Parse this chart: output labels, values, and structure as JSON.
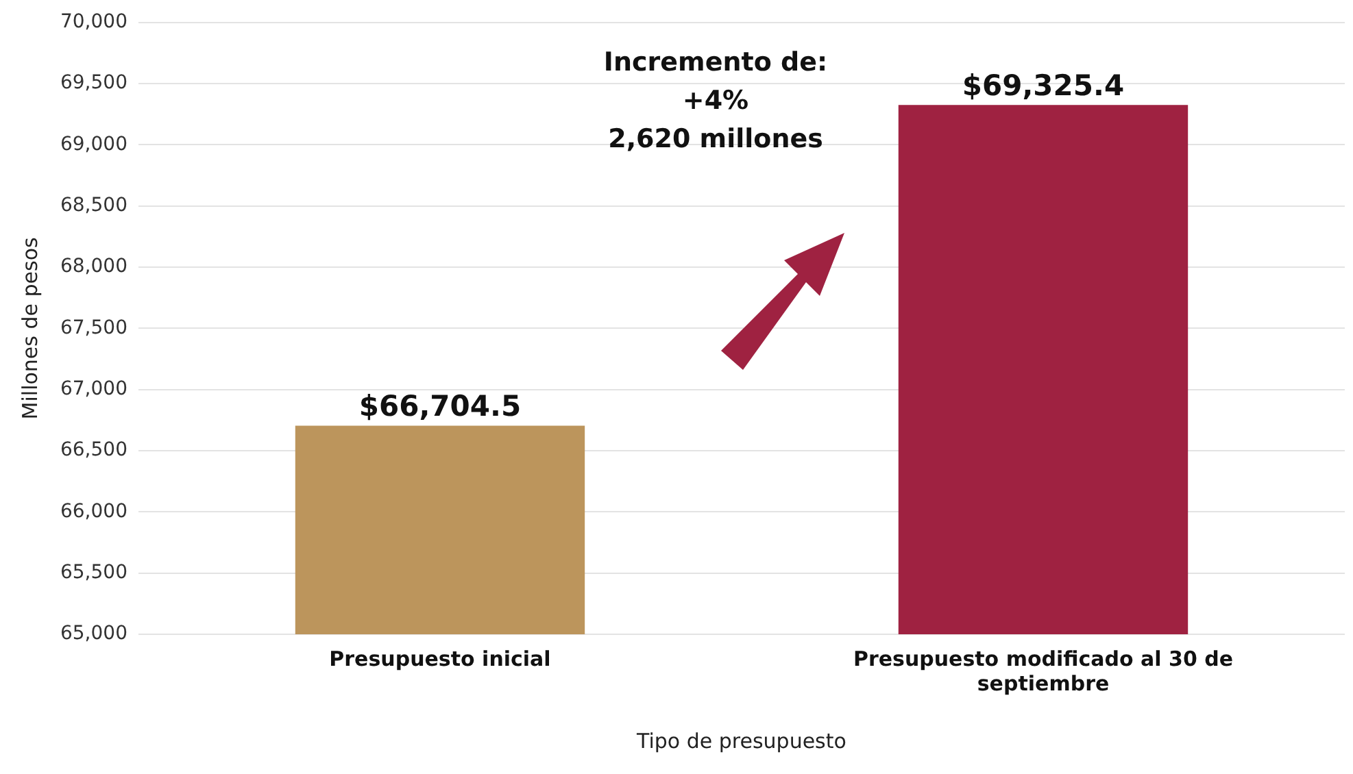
{
  "chart_data": {
    "type": "bar",
    "xlabel": "Tipo de presupuesto",
    "ylabel": "Millones de pesos",
    "categories": [
      "Presupuesto inicial",
      "Presupuesto modificado al 30 de septiembre"
    ],
    "values": [
      66704.5,
      69325.4
    ],
    "colors": [
      "#bc955c",
      "#9f2241"
    ],
    "value_labels": [
      "$66,704.5",
      "$69,325.4"
    ],
    "ylim": [
      65000,
      70000
    ],
    "yticks": [
      {
        "value": 65000,
        "label": "65,000"
      },
      {
        "value": 65500,
        "label": "65,500"
      },
      {
        "value": 66000,
        "label": "66,000"
      },
      {
        "value": 66500,
        "label": "66,500"
      },
      {
        "value": 67000,
        "label": "67,000"
      },
      {
        "value": 67500,
        "label": "67,500"
      },
      {
        "value": 68000,
        "label": "68,000"
      },
      {
        "value": 68500,
        "label": "68,500"
      },
      {
        "value": 69000,
        "label": "69,000"
      },
      {
        "value": 69500,
        "label": "69,500"
      },
      {
        "value": 70000,
        "label": "70,000"
      }
    ],
    "grid": "y",
    "annotations": [
      "Incremento de:\n+4%\n2,620 millones"
    ]
  }
}
